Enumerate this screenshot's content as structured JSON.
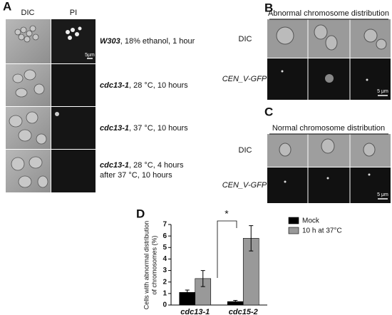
{
  "panel_labels": [
    "A",
    "B",
    "C",
    "D"
  ],
  "panel_a": {
    "column_headers": [
      "DIC",
      "PI"
    ],
    "scale_bar": "5µm",
    "rows": [
      {
        "strain": "W303",
        "condition": ", 18% ethanol, 1 hour"
      },
      {
        "strain": "cdc13-1",
        "condition": ", 28 °C, 10 hours"
      },
      {
        "strain": "cdc13-1",
        "condition": ", 37 °C, 10 hours"
      },
      {
        "strain": "cdc13-1",
        "condition": ", 28 °C, 4 hours",
        "condition_line2": "after 37 °C, 10 hours"
      }
    ]
  },
  "panel_b": {
    "header": "Abnormal chromosome distribution",
    "row_labels": [
      "DIC",
      "CEN_V-GFP"
    ],
    "scale_bar": "5 μm"
  },
  "panel_c": {
    "header": "Normal chromosome distribution",
    "row_labels": [
      "DIC",
      "CEN_V-GFP"
    ],
    "scale_bar": "5 μm"
  },
  "chart_data": {
    "type": "bar",
    "y_label": [
      "Cells with abnormal distribution",
      "of chromosomes (%)"
    ],
    "categories": [
      "cdc13-1",
      "cdc15-2"
    ],
    "series": [
      {
        "name": "Mock",
        "color": "#000000",
        "values": [
          1.1,
          0.3
        ],
        "errors": [
          0.2,
          0.1
        ]
      },
      {
        "name": "10 h at 37°C",
        "color": "#999999",
        "values": [
          2.3,
          5.8
        ],
        "errors": [
          0.7,
          1.1
        ]
      }
    ],
    "ylim": [
      0,
      7
    ],
    "yticks": [
      0,
      1,
      2,
      3,
      4,
      5,
      6,
      7
    ],
    "annotations": [
      "*"
    ]
  }
}
